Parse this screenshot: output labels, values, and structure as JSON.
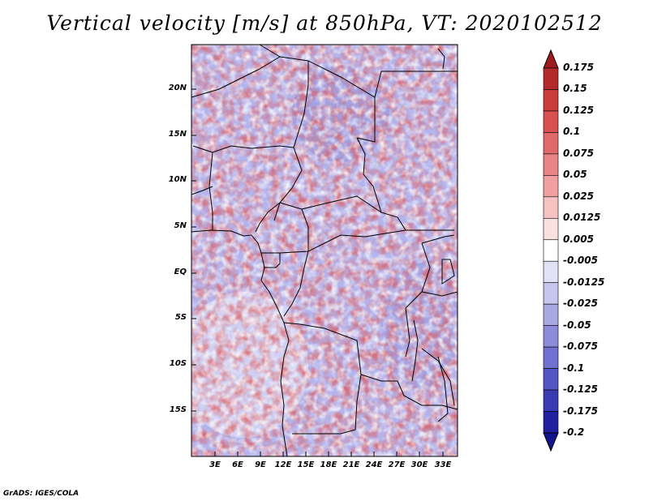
{
  "title": "Vertical velocity [m/s] at 850hPa, VT: 2020102512",
  "credit": "GrADS: IGES/COLA",
  "lat_ticks": [
    "20N",
    "15N",
    "10N",
    "5N",
    "EQ",
    "5S",
    "10S",
    "15S"
  ],
  "lon_ticks": [
    "3E",
    "6E",
    "9E",
    "12E",
    "15E",
    "18E",
    "21E",
    "24E",
    "27E",
    "30E",
    "33E"
  ],
  "colorbar": {
    "labels": [
      "0.175",
      "0.15",
      "0.125",
      "0.1",
      "0.075",
      "0.05",
      "0.025",
      "0.0125",
      "0.005",
      "-0.005",
      "-0.0125",
      "-0.025",
      "-0.05",
      "-0.075",
      "-0.1",
      "-0.125",
      "-0.175",
      "-0.2"
    ],
    "colors": [
      "#a01c1c",
      "#b42a2a",
      "#c83c3c",
      "#d85050",
      "#e06a6a",
      "#e88484",
      "#f0a0a0",
      "#f6c2c2",
      "#fbe0e0",
      "#ffffff",
      "#e2e2f6",
      "#c6c6ee",
      "#a8a8e4",
      "#8c8cda",
      "#7070d0",
      "#5454c4",
      "#3a3ab2",
      "#2020a0",
      "#14148c"
    ]
  }
}
